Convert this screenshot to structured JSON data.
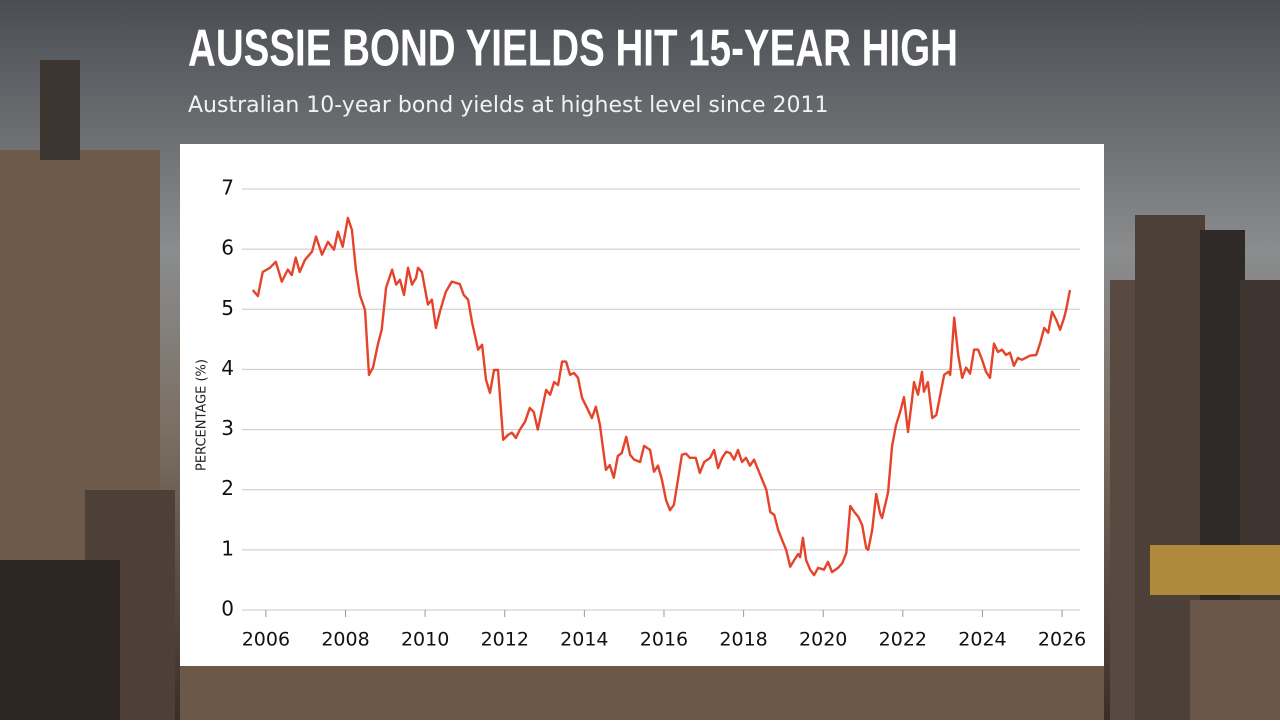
{
  "chart_data": {
    "type": "line",
    "title": "AUSSIE BOND YIELDS HIT 15-YEAR HIGH",
    "subtitle": "Australian 10-year bond yields at highest level since 2011",
    "y_label": "PERCENTAGE (%)",
    "color": "#e5432a",
    "grid": true,
    "xlim": [
      2005.4,
      2026.45
    ],
    "xticks": [
      2006,
      2008,
      2010,
      2012,
      2014,
      2016,
      2018,
      2020,
      2022,
      2024,
      2026
    ],
    "ylim": [
      0,
      7
    ],
    "yticks": [
      0,
      1,
      2,
      3,
      4,
      5,
      6,
      7
    ],
    "x": [
      2005.67,
      2005.8,
      2005.92,
      2006.1,
      2006.25,
      2006.4,
      2006.55,
      2006.65,
      2006.75,
      2006.85,
      2006.98,
      2007.16,
      2007.26,
      2007.41,
      2007.56,
      2007.71,
      2007.81,
      2007.93,
      2008.06,
      2008.16,
      2008.26,
      2008.36,
      2008.49,
      2008.59,
      2008.69,
      2008.81,
      2008.91,
      2009.02,
      2009.17,
      2009.27,
      2009.37,
      2009.47,
      2009.57,
      2009.67,
      2009.77,
      2009.82,
      2009.92,
      2010.07,
      2010.17,
      2010.27,
      2010.37,
      2010.52,
      2010.67,
      2010.87,
      2010.97,
      2011.08,
      2011.18,
      2011.33,
      2011.43,
      2011.53,
      2011.63,
      2011.73,
      2011.83,
      2011.96,
      2012.08,
      2012.18,
      2012.28,
      2012.38,
      2012.51,
      2012.63,
      2012.73,
      2012.83,
      2013.04,
      2013.14,
      2013.24,
      2013.34,
      2013.44,
      2013.54,
      2013.64,
      2013.74,
      2013.84,
      2013.94,
      2014.09,
      2014.19,
      2014.29,
      2014.39,
      2014.54,
      2014.64,
      2014.74,
      2014.84,
      2014.94,
      2015.05,
      2015.15,
      2015.25,
      2015.4,
      2015.5,
      2015.65,
      2015.75,
      2015.85,
      2015.95,
      2016.05,
      2016.15,
      2016.25,
      2016.35,
      2016.45,
      2016.55,
      2016.65,
      2016.8,
      2016.9,
      2017.01,
      2017.16,
      2017.26,
      2017.36,
      2017.46,
      2017.56,
      2017.66,
      2017.76,
      2017.86,
      2017.96,
      2018.06,
      2018.16,
      2018.26,
      2018.41,
      2018.57,
      2018.67,
      2018.77,
      2018.87,
      2018.97,
      2019.07,
      2019.17,
      2019.27,
      2019.37,
      2019.42,
      2019.49,
      2019.57,
      2019.67,
      2019.77,
      2019.87,
      2020.02,
      2020.12,
      2020.22,
      2020.37,
      2020.48,
      2020.58,
      2020.68,
      2020.78,
      2020.88,
      2020.98,
      2021.08,
      2021.13,
      2021.23,
      2021.33,
      2021.43,
      2021.48,
      2021.63,
      2021.73,
      2021.83,
      2021.93,
      2022.03,
      2022.13,
      2022.23,
      2022.28,
      2022.38,
      2022.48,
      2022.53,
      2022.63,
      2022.74,
      2022.84,
      2022.94,
      2023.04,
      2023.14,
      2023.19,
      2023.29,
      2023.39,
      2023.49,
      2023.59,
      2023.69,
      2023.79,
      2023.89,
      2023.99,
      2024.09,
      2024.19,
      2024.29,
      2024.39,
      2024.49,
      2024.59,
      2024.69,
      2024.79,
      2024.89,
      2024.99,
      2025.2,
      2025.35,
      2025.45,
      2025.55,
      2025.65,
      2025.75,
      2025.85,
      2025.95,
      2026.05,
      2026.1,
      2026.2
    ],
    "values": [
      5.32,
      5.22,
      5.62,
      5.69,
      5.79,
      5.46,
      5.66,
      5.57,
      5.86,
      5.62,
      5.82,
      5.96,
      6.21,
      5.91,
      6.12,
      5.99,
      6.29,
      6.04,
      6.52,
      6.32,
      5.66,
      5.24,
      4.99,
      3.91,
      4.03,
      4.41,
      4.66,
      5.36,
      5.66,
      5.41,
      5.49,
      5.24,
      5.69,
      5.41,
      5.52,
      5.69,
      5.62,
      5.08,
      5.16,
      4.69,
      4.96,
      5.29,
      5.46,
      5.42,
      5.24,
      5.16,
      4.78,
      4.33,
      4.41,
      3.83,
      3.61,
      3.99,
      3.99,
      2.83,
      2.91,
      2.95,
      2.86,
      3.0,
      3.13,
      3.36,
      3.29,
      3.0,
      3.66,
      3.58,
      3.79,
      3.74,
      4.13,
      4.13,
      3.91,
      3.94,
      3.86,
      3.53,
      3.33,
      3.19,
      3.38,
      3.08,
      2.33,
      2.41,
      2.2,
      2.56,
      2.61,
      2.88,
      2.58,
      2.5,
      2.46,
      2.73,
      2.66,
      2.3,
      2.4,
      2.16,
      1.83,
      1.66,
      1.75,
      2.16,
      2.58,
      2.6,
      2.53,
      2.53,
      2.28,
      2.46,
      2.53,
      2.66,
      2.36,
      2.53,
      2.63,
      2.61,
      2.5,
      2.66,
      2.46,
      2.53,
      2.4,
      2.5,
      2.26,
      2.0,
      1.63,
      1.58,
      1.33,
      1.16,
      1.0,
      0.72,
      0.83,
      0.93,
      0.88,
      1.2,
      0.83,
      0.67,
      0.58,
      0.7,
      0.67,
      0.8,
      0.63,
      0.7,
      0.78,
      0.95,
      1.73,
      1.63,
      1.55,
      1.41,
      1.03,
      1.0,
      1.33,
      1.93,
      1.6,
      1.53,
      1.96,
      2.73,
      3.08,
      3.29,
      3.54,
      2.96,
      3.49,
      3.79,
      3.58,
      3.96,
      3.63,
      3.79,
      3.19,
      3.24,
      3.58,
      3.91,
      3.96,
      3.91,
      4.86,
      4.24,
      3.86,
      4.03,
      3.93,
      4.33,
      4.33,
      4.16,
      3.96,
      3.86,
      4.43,
      4.29,
      4.33,
      4.24,
      4.28,
      4.06,
      4.19,
      4.16,
      4.23,
      4.24,
      4.44,
      4.69,
      4.61,
      4.96,
      4.83,
      4.66,
      4.86,
      4.99,
      5.32
    ]
  }
}
